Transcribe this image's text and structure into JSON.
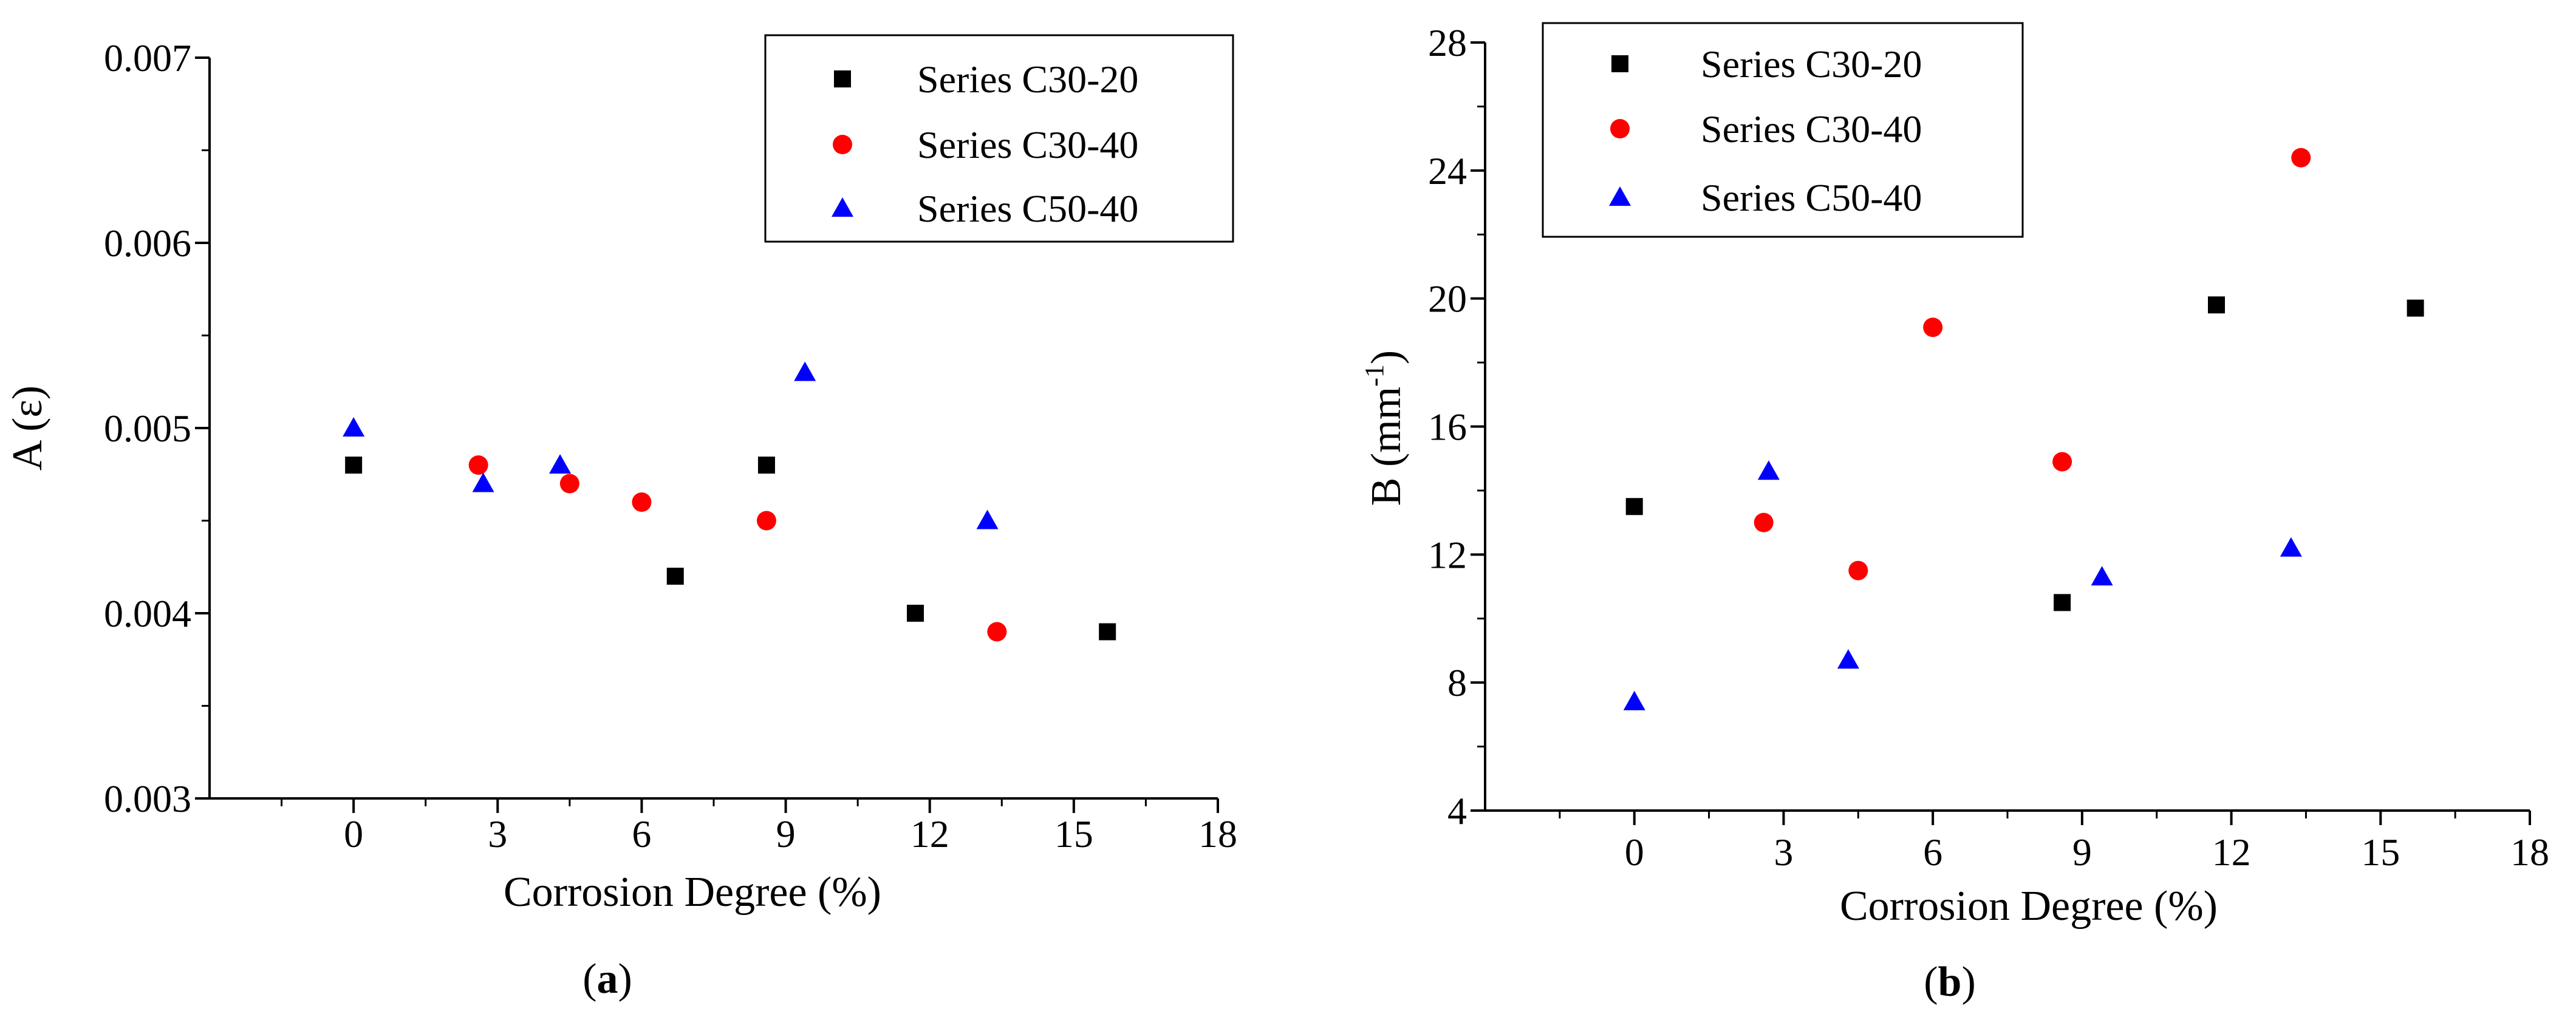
{
  "chart_data": [
    {
      "type": "scatter",
      "panel_label": "a",
      "xlabel": "Corrosion Degree (%)",
      "ylabel": "A (ε)",
      "xlim": [
        -3,
        18
      ],
      "ylim": [
        0.003,
        0.007
      ],
      "xticks": [
        0,
        3,
        6,
        9,
        12,
        15,
        18
      ],
      "xtick_labels": [
        "0",
        "3",
        "6",
        "9",
        "12",
        "15",
        "18"
      ],
      "yticks": [
        0.003,
        0.004,
        0.005,
        0.006,
        0.007
      ],
      "ytick_labels": [
        "0.003",
        "0.004",
        "0.005",
        "0.006",
        "0.007"
      ],
      "legend_position": "top-right",
      "series": [
        {
          "name": "Series C30-20",
          "marker": "square",
          "color": "#000000",
          "x": [
            0,
            6.7,
            8.6,
            11.7,
            15.7
          ],
          "y": [
            0.0048,
            0.0042,
            0.0048,
            0.004,
            0.0039
          ]
        },
        {
          "name": "Series C30-40",
          "marker": "circle",
          "color": "#ff0000",
          "x": [
            2.6,
            4.5,
            6.0,
            8.6,
            13.4
          ],
          "y": [
            0.0048,
            0.0047,
            0.0046,
            0.0045,
            0.0039
          ]
        },
        {
          "name": "Series C50-40",
          "marker": "triangle",
          "color": "#0000ff",
          "x": [
            0,
            2.7,
            4.3,
            9.4,
            13.2
          ],
          "y": [
            0.005,
            0.0047,
            0.0048,
            0.0053,
            0.0045
          ]
        }
      ]
    },
    {
      "type": "scatter",
      "panel_label": "b",
      "xlabel": "Corrosion Degree (%)",
      "ylabel": "B (mm⁻¹)",
      "ylabel_main": "B (mm",
      "ylabel_sup": "-1",
      "ylabel_close": ")",
      "xlim": [
        -3,
        18
      ],
      "ylim": [
        4,
        28
      ],
      "xticks": [
        0,
        3,
        6,
        9,
        12,
        15,
        18
      ],
      "xtick_labels": [
        "0",
        "3",
        "6",
        "9",
        "12",
        "15",
        "18"
      ],
      "yticks": [
        4,
        8,
        12,
        16,
        20,
        24,
        28
      ],
      "ytick_labels": [
        "4",
        "8",
        "12",
        "16",
        "20",
        "24",
        "28"
      ],
      "legend_position": "top-left",
      "series": [
        {
          "name": "Series C30-20",
          "marker": "square",
          "color": "#000000",
          "x": [
            0,
            8.6,
            11.7,
            15.7
          ],
          "y": [
            13.5,
            10.5,
            19.8,
            19.7
          ]
        },
        {
          "name": "Series C30-40",
          "marker": "circle",
          "color": "#ff0000",
          "x": [
            2.6,
            4.5,
            6.0,
            8.6,
            13.4
          ],
          "y": [
            13.0,
            11.5,
            19.1,
            14.9,
            24.4
          ]
        },
        {
          "name": "Series C50-40",
          "marker": "triangle",
          "color": "#0000ff",
          "x": [
            0,
            2.7,
            4.3,
            9.4,
            13.2
          ],
          "y": [
            7.4,
            14.6,
            8.7,
            11.3,
            12.2
          ]
        }
      ]
    }
  ]
}
